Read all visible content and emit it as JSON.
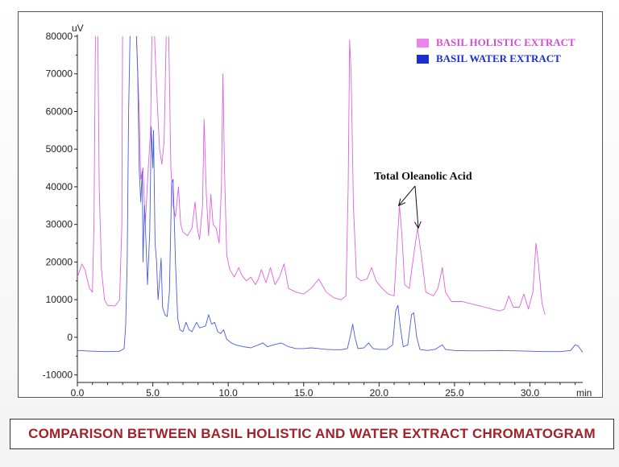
{
  "caption": "COMPARISON BETWEEN  BASIL HOLISTIC AND WATER  EXTRACT CHROMATOGRAM",
  "chart_data": {
    "type": "line",
    "y_unit": "uV",
    "x_unit": "min",
    "xlim": [
      0,
      33.5
    ],
    "ylim": [
      -12000,
      80000
    ],
    "x_ticks": [
      0,
      5,
      10,
      15,
      20,
      25,
      30
    ],
    "x_tick_labels": [
      "0.0",
      "5.0",
      "10.0",
      "15.0",
      "20.0",
      "25.0",
      "30.0"
    ],
    "y_ticks": [
      -10000,
      0,
      10000,
      20000,
      30000,
      40000,
      50000,
      60000,
      70000,
      80000
    ],
    "y_tick_labels": [
      "-10000",
      "0",
      "10000",
      "20000",
      "30000",
      "40000",
      "50000",
      "60000",
      "70000",
      "80000"
    ],
    "legend_position": "top-right",
    "annotation": {
      "text": "Total Oleanolic Acid",
      "targets": [
        {
          "x": 21.3,
          "y": 35000
        },
        {
          "x": 22.6,
          "y": 29000
        }
      ]
    },
    "series": [
      {
        "name": "BASIL HOLISTIC EXTRACT",
        "color": "#e060e0",
        "legend_color": "#ee82ee",
        "points": [
          [
            0,
            16000
          ],
          [
            0.3,
            19500
          ],
          [
            0.5,
            18000
          ],
          [
            0.8,
            13000
          ],
          [
            1.0,
            12000
          ],
          [
            1.1,
            30000
          ],
          [
            1.2,
            82000
          ],
          [
            1.35,
            82000
          ],
          [
            1.45,
            40000
          ],
          [
            1.6,
            18000
          ],
          [
            1.8,
            10000
          ],
          [
            2.0,
            8500
          ],
          [
            2.5,
            8300
          ],
          [
            2.8,
            10000
          ],
          [
            2.95,
            30000
          ],
          [
            3.0,
            82000
          ],
          [
            3.3,
            82000
          ],
          [
            3.5,
            82000
          ],
          [
            3.7,
            82000
          ],
          [
            3.9,
            82000
          ],
          [
            4.1,
            60000
          ],
          [
            4.2,
            42000
          ],
          [
            4.35,
            45000
          ],
          [
            4.5,
            30000
          ],
          [
            4.7,
            45000
          ],
          [
            4.85,
            55000
          ],
          [
            4.95,
            82000
          ],
          [
            5.1,
            82000
          ],
          [
            5.15,
            76000
          ],
          [
            5.3,
            62000
          ],
          [
            5.45,
            50000
          ],
          [
            5.6,
            46000
          ],
          [
            5.75,
            52000
          ],
          [
            5.9,
            82000
          ],
          [
            6.05,
            82000
          ],
          [
            6.2,
            45000
          ],
          [
            6.35,
            35000
          ],
          [
            6.5,
            32000
          ],
          [
            6.7,
            40000
          ],
          [
            6.85,
            30000
          ],
          [
            7.0,
            28000
          ],
          [
            7.3,
            27000
          ],
          [
            7.6,
            29000
          ],
          [
            7.8,
            36000
          ],
          [
            7.95,
            29000
          ],
          [
            8.1,
            26000
          ],
          [
            8.3,
            35000
          ],
          [
            8.4,
            58000
          ],
          [
            8.55,
            38000
          ],
          [
            8.7,
            27000
          ],
          [
            8.85,
            38000
          ],
          [
            9.0,
            30000
          ],
          [
            9.2,
            29000
          ],
          [
            9.4,
            25000
          ],
          [
            9.55,
            40000
          ],
          [
            9.65,
            70000
          ],
          [
            9.75,
            45000
          ],
          [
            9.9,
            22000
          ],
          [
            10.1,
            18000
          ],
          [
            10.4,
            16000
          ],
          [
            10.7,
            18500
          ],
          [
            10.9,
            16500
          ],
          [
            11.2,
            15000
          ],
          [
            11.5,
            16000
          ],
          [
            11.8,
            14000
          ],
          [
            12.0,
            15500
          ],
          [
            12.2,
            18000
          ],
          [
            12.5,
            14500
          ],
          [
            12.8,
            18500
          ],
          [
            13.1,
            14000
          ],
          [
            13.4,
            16000
          ],
          [
            13.7,
            19500
          ],
          [
            14.0,
            13000
          ],
          [
            14.5,
            12000
          ],
          [
            15.0,
            11500
          ],
          [
            15.5,
            13000
          ],
          [
            16.0,
            15500
          ],
          [
            16.5,
            12000
          ],
          [
            17.0,
            10500
          ],
          [
            17.5,
            10000
          ],
          [
            17.8,
            11000
          ],
          [
            17.95,
            40000
          ],
          [
            18.05,
            79000
          ],
          [
            18.15,
            70000
          ],
          [
            18.3,
            35000
          ],
          [
            18.5,
            16000
          ],
          [
            18.8,
            15000
          ],
          [
            19.2,
            15500
          ],
          [
            19.5,
            18500
          ],
          [
            19.8,
            15000
          ],
          [
            20.2,
            13000
          ],
          [
            20.6,
            11500
          ],
          [
            21.0,
            11000
          ],
          [
            21.2,
            25000
          ],
          [
            21.35,
            35000
          ],
          [
            21.5,
            28000
          ],
          [
            21.7,
            14000
          ],
          [
            22.0,
            13000
          ],
          [
            22.3,
            22000
          ],
          [
            22.55,
            29000
          ],
          [
            22.8,
            22000
          ],
          [
            23.1,
            12000
          ],
          [
            23.6,
            11000
          ],
          [
            23.9,
            13000
          ],
          [
            24.2,
            18500
          ],
          [
            24.4,
            12000
          ],
          [
            24.8,
            9500
          ],
          [
            25.5,
            9500
          ],
          [
            26.0,
            9000
          ],
          [
            26.5,
            8500
          ],
          [
            27.0,
            8000
          ],
          [
            27.5,
            7500
          ],
          [
            28.0,
            7000
          ],
          [
            28.3,
            7500
          ],
          [
            28.6,
            11000
          ],
          [
            28.9,
            8000
          ],
          [
            29.3,
            8000
          ],
          [
            29.6,
            11500
          ],
          [
            29.9,
            7500
          ],
          [
            30.2,
            12000
          ],
          [
            30.4,
            25000
          ],
          [
            30.55,
            20000
          ],
          [
            30.8,
            9000
          ],
          [
            31.0,
            6000
          ]
        ]
      },
      {
        "name": "BASIL WATER EXTRACT",
        "color": "#4a5cd8",
        "legend_color": "#1a2fd0",
        "points": [
          [
            0,
            -3500
          ],
          [
            1.0,
            -3700
          ],
          [
            2.0,
            -3800
          ],
          [
            2.8,
            -3700
          ],
          [
            3.1,
            -3000
          ],
          [
            3.2,
            3000
          ],
          [
            3.3,
            20000
          ],
          [
            3.4,
            60000
          ],
          [
            3.5,
            82000
          ],
          [
            3.7,
            82000
          ],
          [
            3.9,
            82000
          ],
          [
            4.0,
            70000
          ],
          [
            4.1,
            45000
          ],
          [
            4.2,
            36000
          ],
          [
            4.3,
            44000
          ],
          [
            4.35,
            20000
          ],
          [
            4.45,
            35000
          ],
          [
            4.55,
            25000
          ],
          [
            4.65,
            14000
          ],
          [
            4.8,
            28000
          ],
          [
            4.9,
            56000
          ],
          [
            5.0,
            45000
          ],
          [
            5.05,
            55000
          ],
          [
            5.15,
            25000
          ],
          [
            5.25,
            20000
          ],
          [
            5.35,
            10000
          ],
          [
            5.45,
            15000
          ],
          [
            5.55,
            21000
          ],
          [
            5.65,
            8000
          ],
          [
            5.8,
            6000
          ],
          [
            5.95,
            5500
          ],
          [
            6.1,
            12000
          ],
          [
            6.25,
            41000
          ],
          [
            6.35,
            42000
          ],
          [
            6.5,
            20000
          ],
          [
            6.65,
            5000
          ],
          [
            6.8,
            2000
          ],
          [
            7.0,
            1500
          ],
          [
            7.2,
            4000
          ],
          [
            7.4,
            2000
          ],
          [
            7.6,
            1500
          ],
          [
            7.9,
            4000
          ],
          [
            8.1,
            2500
          ],
          [
            8.5,
            3000
          ],
          [
            8.7,
            6000
          ],
          [
            8.9,
            3500
          ],
          [
            9.1,
            4000
          ],
          [
            9.3,
            1500
          ],
          [
            9.5,
            1000
          ],
          [
            9.7,
            2000
          ],
          [
            9.9,
            -500
          ],
          [
            10.2,
            -1500
          ],
          [
            10.5,
            -2000
          ],
          [
            11.0,
            -2500
          ],
          [
            11.5,
            -2800
          ],
          [
            12.0,
            -2000
          ],
          [
            12.3,
            -1500
          ],
          [
            12.6,
            -2500
          ],
          [
            13.0,
            -2000
          ],
          [
            13.5,
            -1500
          ],
          [
            14.0,
            -2500
          ],
          [
            14.5,
            -3000
          ],
          [
            15.0,
            -3000
          ],
          [
            15.5,
            -2800
          ],
          [
            16.0,
            -3000
          ],
          [
            16.5,
            -3200
          ],
          [
            17.0,
            -3300
          ],
          [
            17.5,
            -3300
          ],
          [
            17.9,
            -3000
          ],
          [
            18.1,
            500
          ],
          [
            18.25,
            3500
          ],
          [
            18.4,
            0
          ],
          [
            18.6,
            -3000
          ],
          [
            19.0,
            -2800
          ],
          [
            19.3,
            -1500
          ],
          [
            19.6,
            -3000
          ],
          [
            20.0,
            -3200
          ],
          [
            20.5,
            -3200
          ],
          [
            20.9,
            -2000
          ],
          [
            21.1,
            7000
          ],
          [
            21.25,
            8500
          ],
          [
            21.4,
            3000
          ],
          [
            21.6,
            -2500
          ],
          [
            21.9,
            -2000
          ],
          [
            22.15,
            6000
          ],
          [
            22.3,
            6500
          ],
          [
            22.5,
            0
          ],
          [
            22.7,
            -3200
          ],
          [
            23.2,
            -3500
          ],
          [
            23.7,
            -3200
          ],
          [
            24.0,
            -2500
          ],
          [
            24.2,
            -2000
          ],
          [
            24.4,
            -3200
          ],
          [
            25.0,
            -3500
          ],
          [
            26.0,
            -3600
          ],
          [
            27.0,
            -3600
          ],
          [
            28.0,
            -3500
          ],
          [
            29.0,
            -3600
          ],
          [
            30.0,
            -3700
          ],
          [
            31.0,
            -3800
          ],
          [
            32.0,
            -3800
          ],
          [
            32.7,
            -3500
          ],
          [
            33.0,
            -2000
          ],
          [
            33.2,
            -2300
          ],
          [
            33.5,
            -4000
          ]
        ]
      }
    ]
  }
}
